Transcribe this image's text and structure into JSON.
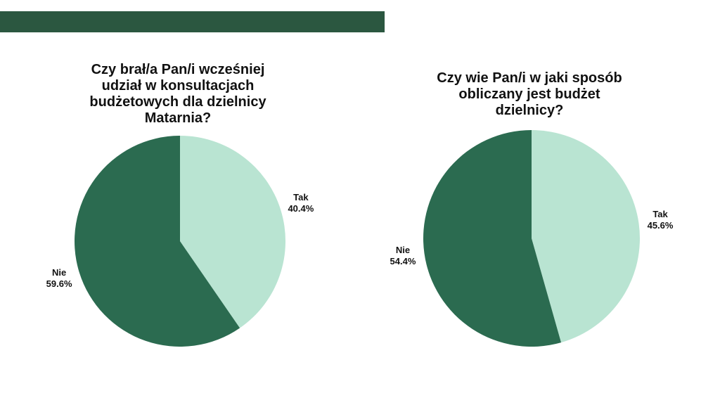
{
  "chart_data": [
    {
      "type": "pie",
      "title": "Czy brał/a Pan/i wcześniej udział w konsultacjach budżetowych dla dzielnicy Matarnia?",
      "categories": [
        "Tak",
        "Nie"
      ],
      "values": [
        40.4,
        59.6
      ],
      "value_labels": [
        "40.4%",
        "59.6%"
      ],
      "colors": [
        "#b9e4d2",
        "#2b6b50"
      ]
    },
    {
      "type": "pie",
      "title": "Czy wie Pan/i w jaki sposób obliczany jest budżet dzielnicy?",
      "categories": [
        "Tak",
        "Nie"
      ],
      "values": [
        45.6,
        54.4
      ],
      "value_labels": [
        "45.6%",
        "54.4%"
      ],
      "colors": [
        "#b9e4d2",
        "#2b6b50"
      ]
    }
  ]
}
